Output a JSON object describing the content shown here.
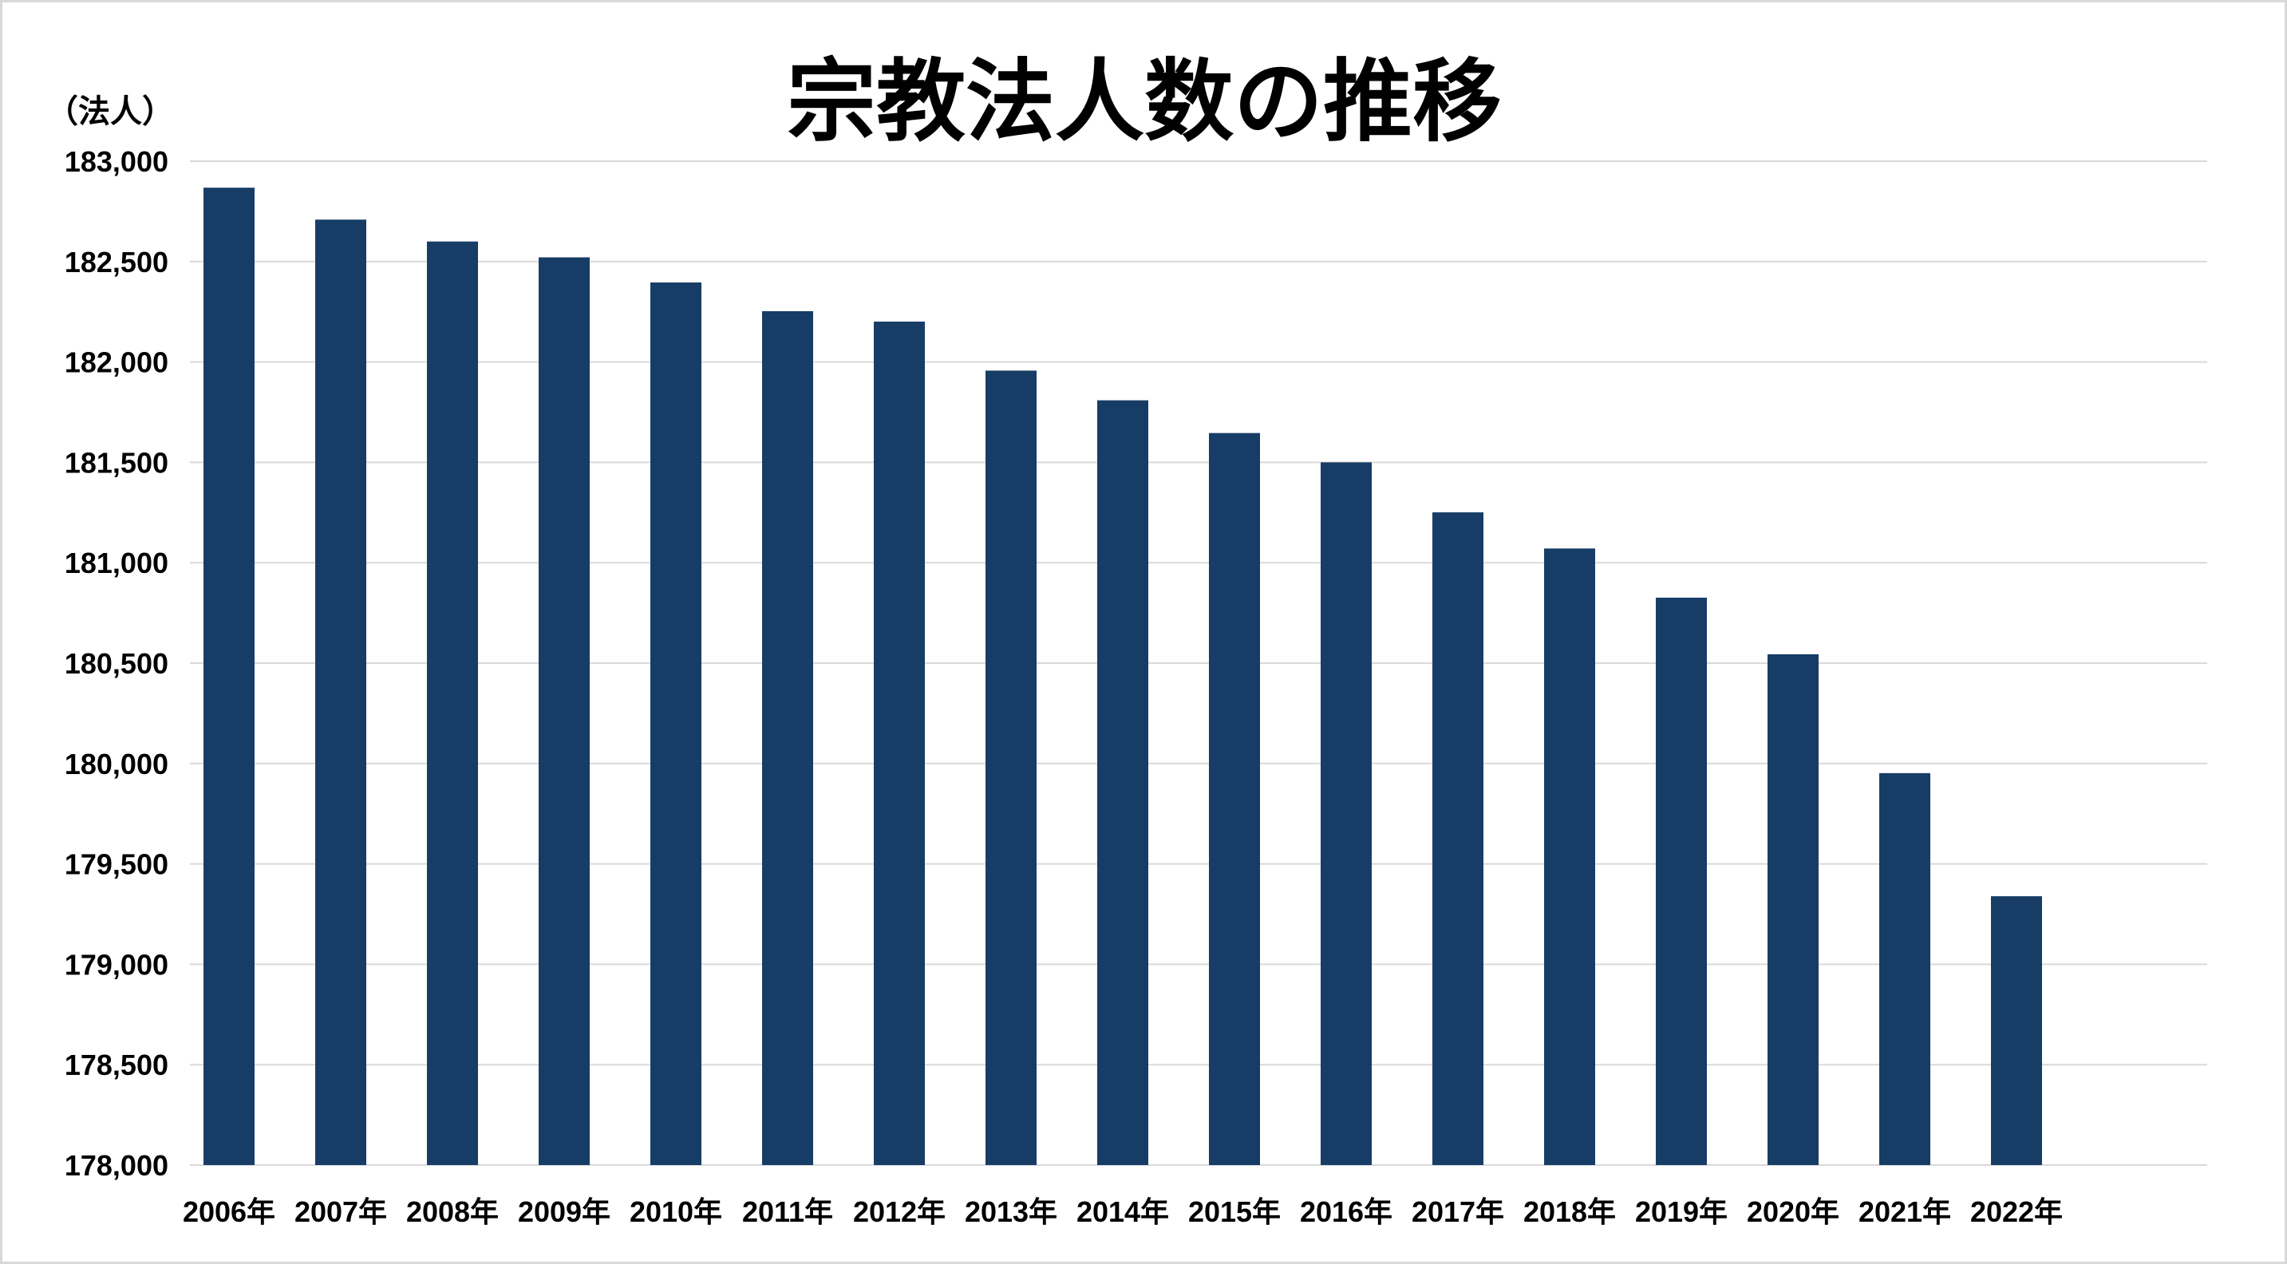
{
  "chart_data": {
    "type": "bar",
    "title": "宗教法人数の推移",
    "ylabel": "（法人）",
    "xlabel": "",
    "ylim": [
      178000,
      183000
    ],
    "ytick_step": 500,
    "grid": true,
    "bar_color": "#173d66",
    "categories": [
      "2006年",
      "2007年",
      "2008年",
      "2009年",
      "2010年",
      "2011年",
      "2012年",
      "2013年",
      "2014年",
      "2015年",
      "2016年",
      "2017年",
      "2018年",
      "2019年",
      "2020年",
      "2021年",
      "2022年"
    ],
    "values": [
      182868,
      182709,
      182600,
      182521,
      182396,
      182253,
      182201,
      181957,
      181809,
      181646,
      181500,
      181251,
      181071,
      180826,
      180544,
      179952,
      179339
    ]
  }
}
